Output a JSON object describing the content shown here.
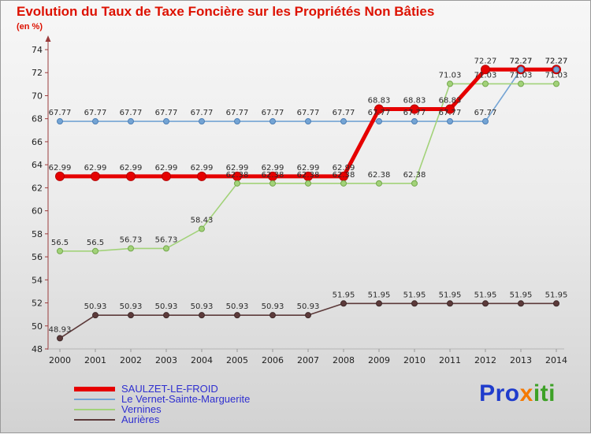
{
  "chart_data": {
    "type": "line",
    "title": "Evolution du Taux de Taxe Foncière sur les Propriétés Non Bâties",
    "subtitle": "(en %)",
    "xlabel": "",
    "ylabel": "(en %)",
    "x": [
      2000,
      2001,
      2002,
      2003,
      2004,
      2005,
      2006,
      2007,
      2008,
      2009,
      2010,
      2011,
      2012,
      2013,
      2014
    ],
    "ylim": [
      48,
      74
    ],
    "ytick_step": 2,
    "grid": false,
    "legend_position": "bottom-left",
    "series": [
      {
        "name": "SAULZET-LE-FROID",
        "color": "#e60000",
        "marker_stroke": "#b40000",
        "line_width": 5,
        "marker_radius": 5.5,
        "values": [
          62.99,
          62.99,
          62.99,
          62.99,
          62.99,
          62.99,
          62.99,
          62.99,
          62.99,
          68.83,
          68.83,
          68.83,
          72.27,
          72.27,
          72.27
        ]
      },
      {
        "name": "Le Vernet-Sainte-Marguerite",
        "color": "#74a4d4",
        "marker_stroke": "#4d7fb5",
        "line_width": 1.6,
        "marker_radius": 3.5,
        "values": [
          67.77,
          67.77,
          67.77,
          67.77,
          67.77,
          67.77,
          67.77,
          67.77,
          67.77,
          67.77,
          67.77,
          67.77,
          67.77,
          72.27,
          72.27
        ]
      },
      {
        "name": "Vernines",
        "color": "#a2d279",
        "marker_stroke": "#73a84c",
        "line_width": 1.6,
        "marker_radius": 3.5,
        "values": [
          56.5,
          56.5,
          56.73,
          56.73,
          58.43,
          62.38,
          62.38,
          62.38,
          62.38,
          62.38,
          62.38,
          71.03,
          71.03,
          71.03,
          71.03
        ]
      },
      {
        "name": "Aurières",
        "color": "#5c3a3a",
        "marker_stroke": "#3f2a2a",
        "line_width": 1.6,
        "marker_radius": 3.5,
        "values": [
          48.93,
          50.93,
          50.93,
          50.93,
          50.93,
          50.93,
          50.93,
          50.93,
          51.95,
          51.95,
          51.95,
          51.95,
          51.95,
          51.95,
          51.95
        ]
      }
    ]
  },
  "colors": {
    "title": "#dd1100",
    "subtitle": "#dd1100",
    "legend_text": "#2f2fd0",
    "axis": "#9a3b3b",
    "tick_text": "#222222",
    "label_text": "#2b2b2b",
    "x_tick_mark": "#9a9a9a",
    "x_axis_line": "#b5b5b5"
  },
  "logo": {
    "pro": "Pro",
    "x": "x",
    "iti": "iti",
    "color_pro": "#1f3ccc",
    "color_x": "#f57900",
    "color_iti": "#3da126"
  }
}
